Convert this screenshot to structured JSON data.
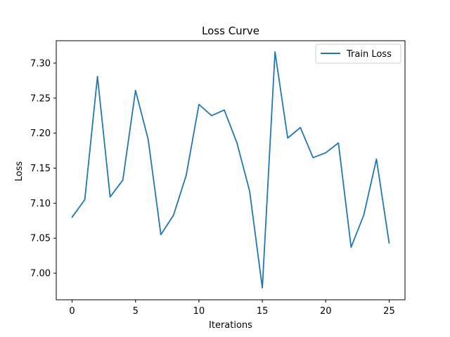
{
  "chart_data": {
    "type": "line",
    "title": "Loss Curve",
    "xlabel": "Iterations",
    "ylabel": "Loss",
    "xlim": [
      -1.25,
      26.25
    ],
    "ylim": [
      6.962,
      7.332
    ],
    "xticks": [
      0,
      5,
      10,
      15,
      20,
      25
    ],
    "xtick_labels": [
      "0",
      "5",
      "10",
      "15",
      "20",
      "25"
    ],
    "yticks": [
      7.0,
      7.05,
      7.1,
      7.15,
      7.2,
      7.25,
      7.3
    ],
    "ytick_labels": [
      "7.00",
      "7.05",
      "7.10",
      "7.15",
      "7.20",
      "7.25",
      "7.30"
    ],
    "grid": false,
    "legend_position": "top-right",
    "series": [
      {
        "name": "Train Loss",
        "color": "#1f77b4",
        "x": [
          0,
          1,
          2,
          3,
          4,
          5,
          6,
          7,
          8,
          9,
          10,
          11,
          12,
          13,
          14,
          15,
          16,
          17,
          18,
          19,
          20,
          21,
          22,
          23,
          24,
          25
        ],
        "y": [
          7.08,
          7.105,
          7.281,
          7.109,
          7.133,
          7.261,
          7.191,
          7.055,
          7.083,
          7.14,
          7.241,
          7.225,
          7.233,
          7.186,
          7.117,
          6.979,
          7.316,
          7.193,
          7.208,
          7.165,
          7.172,
          7.186,
          7.037,
          7.083,
          7.163,
          7.043
        ]
      }
    ]
  }
}
